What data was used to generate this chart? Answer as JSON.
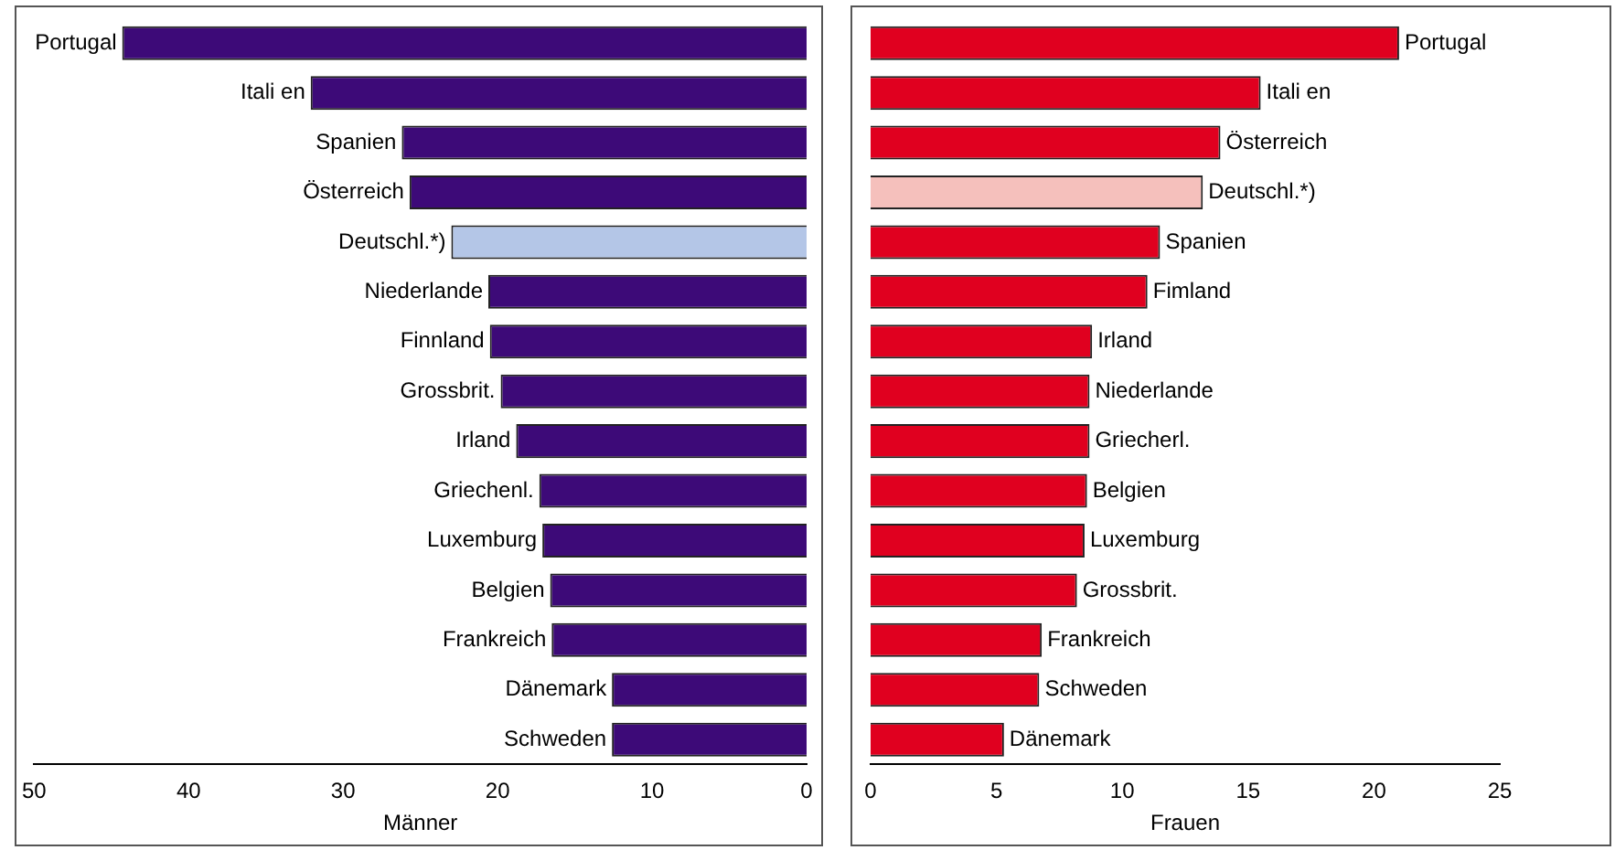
{
  "chart_data": [
    {
      "type": "bar",
      "orientation": "horizontal",
      "xlabel": "Männer",
      "categories": [
        "Portugal",
        "Itali en",
        "Spanien",
        "Österreich",
        "Deutschl.*)",
        "Niederlande",
        "Finnland",
        "Grossbrit.",
        "Irland",
        "Griechenl.",
        "Luxemburg",
        "Belgien",
        "Frankreich",
        "Dänemark",
        "Schweden"
      ],
      "values": [
        44.3,
        32.1,
        26.2,
        25.7,
        23.0,
        20.6,
        20.5,
        19.8,
        18.8,
        17.3,
        17.1,
        16.6,
        16.5,
        12.6,
        12.6
      ],
      "colors": [
        "#3d0a78",
        "#3d0a78",
        "#3d0a78",
        "#3d0a78",
        "#b4c6e7",
        "#3d0a78",
        "#3d0a78",
        "#3d0a78",
        "#3d0a78",
        "#3d0a78",
        "#3d0a78",
        "#3d0a78",
        "#3d0a78",
        "#3d0a78",
        "#3d0a78"
      ],
      "xlim": [
        50,
        0
      ],
      "xticks": [
        50,
        40,
        30,
        20,
        10,
        0
      ],
      "grid": false,
      "legend": false
    },
    {
      "type": "bar",
      "orientation": "horizontal",
      "xlabel": "Frauen",
      "categories": [
        "Portugal",
        "Itali en",
        "Österreich",
        "Deutschl.*)",
        "Spanien",
        "Fimland",
        "Irland",
        "Niederlande",
        "Griecherl.",
        "Belgien",
        "Luxemburg",
        "Grossbrit.",
        "Frankreich",
        "Schweden",
        "Dänemark"
      ],
      "values": [
        21.0,
        15.5,
        13.9,
        13.2,
        11.5,
        11.0,
        8.8,
        8.7,
        8.7,
        8.6,
        8.5,
        8.2,
        6.8,
        6.7,
        5.3
      ],
      "colors": [
        "#e0001f",
        "#e0001f",
        "#e0001f",
        "#f5c0bc",
        "#e0001f",
        "#e0001f",
        "#e0001f",
        "#e0001f",
        "#e0001f",
        "#e0001f",
        "#e0001f",
        "#e0001f",
        "#e0001f",
        "#e0001f",
        "#e0001f"
      ],
      "xlim": [
        0,
        25
      ],
      "xticks": [
        0,
        5,
        10,
        15,
        20,
        25
      ],
      "grid": false,
      "legend": false
    }
  ]
}
